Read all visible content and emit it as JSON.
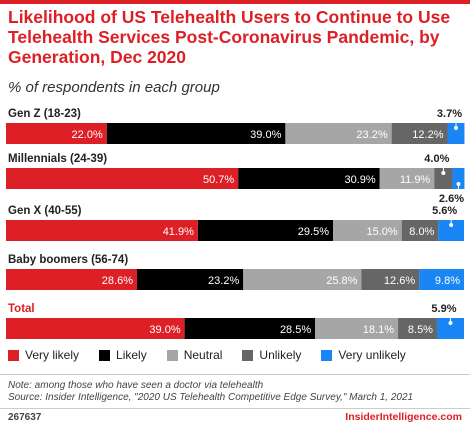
{
  "header": {
    "title": "Likelihood of US Telehealth Users to Continue to Use Telehealth Services Post-Coronavirus Pandemic, by Generation, Dec 2020",
    "subtitle": "% of respondents in each group"
  },
  "chart_data": {
    "type": "bar",
    "orientation": "horizontal",
    "stacked": "100%",
    "title": "Likelihood of US Telehealth Users to Continue to Use Telehealth Services Post-Coronavirus Pandemic, by Generation, Dec 2020",
    "subtitle": "% of respondents in each group",
    "categories": [
      "Gen Z (18-23)",
      "Millennials (24-39)",
      "Gen X (40-55)",
      "Baby boomers (56-74)",
      "Total"
    ],
    "series": [
      {
        "name": "Very likely",
        "color": "#dd1f26",
        "values": [
          22.0,
          50.7,
          41.9,
          28.6,
          39.0
        ]
      },
      {
        "name": "Likely",
        "color": "#000000",
        "values": [
          39.0,
          30.9,
          29.5,
          23.2,
          28.5
        ]
      },
      {
        "name": "Neutral",
        "color": "#a6a6a6",
        "values": [
          23.2,
          11.9,
          15.0,
          25.8,
          18.1
        ]
      },
      {
        "name": "Unlikely",
        "color": "#666666",
        "values": [
          12.2,
          4.0,
          8.0,
          12.6,
          8.5
        ]
      },
      {
        "name": "Very unlikely",
        "color": "#1a86f5",
        "values": [
          3.7,
          2.6,
          5.6,
          9.8,
          5.9
        ]
      }
    ],
    "labels": [
      [
        "22.0%",
        "39.0%",
        "23.2%",
        "12.2%",
        "3.7%"
      ],
      [
        "50.7%",
        "30.9%",
        "11.9%",
        "4.0%",
        "2.6%"
      ],
      [
        "41.9%",
        "29.5%",
        "15.0%",
        "8.0%",
        "5.6%"
      ],
      [
        "28.6%",
        "23.2%",
        "25.8%",
        "12.6%",
        "9.8%"
      ],
      [
        "39.0%",
        "28.5%",
        "18.1%",
        "8.5%",
        "5.9%"
      ]
    ],
    "xlim": [
      0,
      100
    ],
    "grid": false,
    "legend": "bottom"
  },
  "legend": {
    "items": [
      {
        "label": "Very likely",
        "color": "#dd1f26"
      },
      {
        "label": "Likely",
        "color": "#000000"
      },
      {
        "label": "Neutral",
        "color": "#a6a6a6"
      },
      {
        "label": "Unlikely",
        "color": "#666666"
      },
      {
        "label": "Very unlikely",
        "color": "#1a86f5"
      }
    ]
  },
  "footer": {
    "note": "Note: among those who have seen a doctor via telehealth",
    "source": "Source: Insider Intelligence, \"2020 US Telehealth Competitive Edge Survey,\" March 1, 2021",
    "chart_id": "267637",
    "brand": "InsiderIntelligence.com"
  }
}
